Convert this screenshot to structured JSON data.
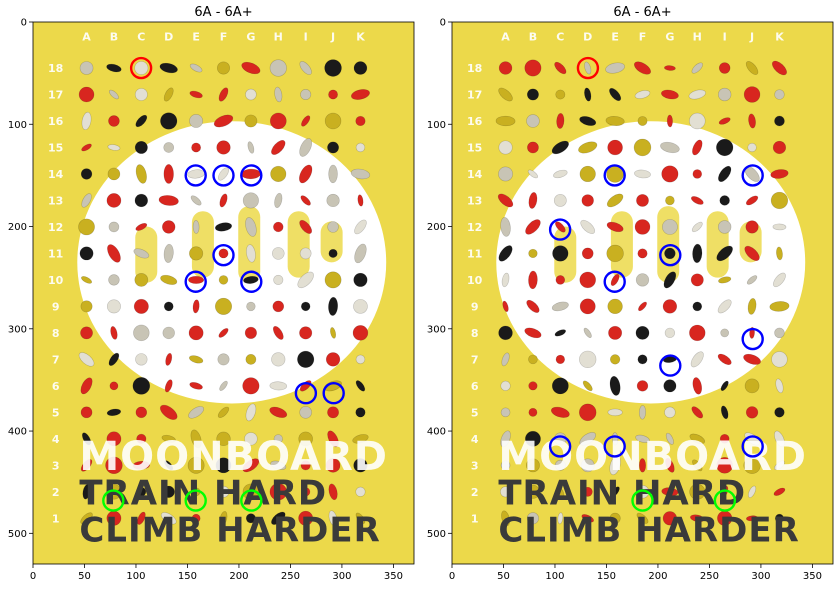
{
  "chart_data": [
    {
      "type": "scatter",
      "title": "6A - 6A+",
      "xlim": [
        0,
        370
      ],
      "ylim": [
        530,
        0
      ],
      "xticks": [
        0,
        50,
        100,
        150,
        200,
        250,
        300,
        350
      ],
      "yticks": [
        0,
        100,
        200,
        300,
        400,
        500
      ],
      "column_labels": [
        "A",
        "B",
        "C",
        "D",
        "E",
        "F",
        "G",
        "H",
        "I",
        "J",
        "K"
      ],
      "row_labels": [
        "18",
        "17",
        "16",
        "15",
        "14",
        "13",
        "12",
        "11",
        "10",
        "9",
        "8",
        "7",
        "6",
        "5",
        "4",
        "3",
        "2",
        "1"
      ],
      "background": {
        "board": "MoonBoard",
        "overlay_text": [
          "MOONBOARD",
          "TRAIN HARD",
          "CLIMB HARDER"
        ],
        "board_color": "#ecd94a"
      },
      "series": [
        {
          "color": "#ff0000",
          "points": [
            [
              105,
              45
            ]
          ]
        },
        {
          "color": "#0000ff",
          "points": [
            [
              158,
              150
            ],
            [
              185,
              150
            ],
            [
              212,
              150
            ],
            [
              185,
              228
            ],
            [
              158,
              254
            ],
            [
              212,
              254
            ],
            [
              265,
              363
            ],
            [
              292,
              363
            ]
          ]
        },
        {
          "color": "#00ff00",
          "points": [
            [
              78,
              468
            ],
            [
              158,
              468
            ],
            [
              212,
              468
            ]
          ]
        }
      ]
    },
    {
      "type": "scatter",
      "title": "6A - 6A+",
      "xlim": [
        0,
        370
      ],
      "ylim": [
        530,
        0
      ],
      "xticks": [
        0,
        50,
        100,
        150,
        200,
        250,
        300,
        350
      ],
      "yticks": [
        0,
        100,
        200,
        300,
        400,
        500
      ],
      "column_labels": [
        "A",
        "B",
        "C",
        "D",
        "E",
        "F",
        "G",
        "H",
        "I",
        "J",
        "K"
      ],
      "row_labels": [
        "18",
        "17",
        "16",
        "15",
        "14",
        "13",
        "12",
        "11",
        "10",
        "9",
        "8",
        "7",
        "6",
        "5",
        "4",
        "3",
        "2",
        "1"
      ],
      "background": {
        "board": "MoonBoard",
        "overlay_text": [
          "MOONBOARD",
          "TRAIN HARD",
          "CLIMB HARDER"
        ],
        "board_color": "#ecd94a"
      },
      "series": [
        {
          "color": "#ff0000",
          "points": [
            [
              132,
              45
            ]
          ]
        },
        {
          "color": "#0000ff",
          "points": [
            [
              158,
              150
            ],
            [
              292,
              150
            ],
            [
              105,
              203
            ],
            [
              212,
              228
            ],
            [
              158,
              254
            ],
            [
              292,
              310
            ],
            [
              212,
              336
            ],
            [
              105,
              415
            ],
            [
              158,
              415
            ],
            [
              292,
              415
            ]
          ]
        },
        {
          "color": "#00ff00",
          "points": [
            [
              185,
              468
            ],
            [
              265,
              468
            ]
          ]
        }
      ]
    }
  ]
}
